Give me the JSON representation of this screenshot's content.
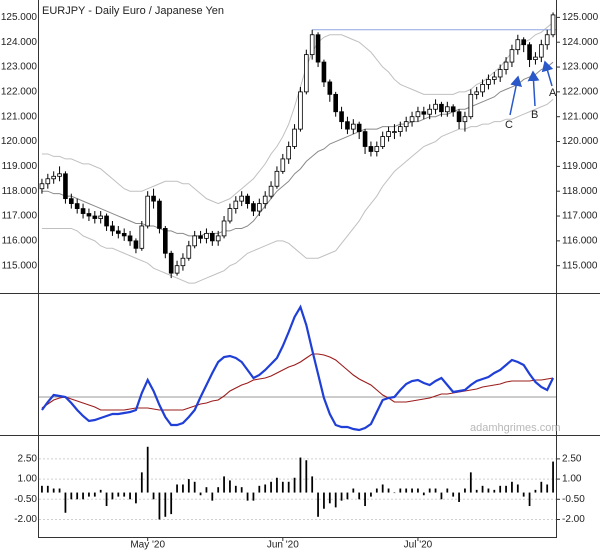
{
  "title": "EURJPY - Daily  Euro / Japanese Yen",
  "watermark": "adamhgrimes.com",
  "annotations": [
    {
      "text": "A"
    },
    {
      "text": "B"
    },
    {
      "text": "C"
    }
  ],
  "chart_data": [
    {
      "type": "candlestick",
      "categories": [
        null,
        null,
        null,
        null,
        null,
        null,
        null,
        null,
        null,
        null,
        null,
        null,
        null,
        null,
        null,
        null,
        null,
        null,
        "May '20",
        null,
        null,
        null,
        null,
        null,
        null,
        null,
        null,
        null,
        null,
        null,
        null,
        null,
        null,
        null,
        null,
        null,
        null,
        null,
        null,
        null,
        null,
        "Jun '20",
        null,
        null,
        null,
        null,
        null,
        null,
        null,
        null,
        null,
        null,
        null,
        null,
        null,
        null,
        null,
        null,
        null,
        null,
        null,
        null,
        null,
        null,
        "Jul '20",
        null,
        null,
        null,
        null,
        null,
        null,
        null,
        null,
        null,
        null,
        null,
        null,
        null,
        null,
        null,
        null,
        null,
        null,
        null,
        null,
        null,
        null,
        null
      ],
      "open": [
        118.1,
        118.3,
        118.5,
        118.6,
        118.7,
        117.7,
        117.5,
        117.3,
        117.1,
        117.0,
        116.9,
        117.0,
        116.6,
        116.4,
        116.3,
        116.2,
        116.0,
        115.7,
        116.6,
        117.8,
        117.6,
        116.5,
        115.5,
        114.7,
        115.0,
        115.3,
        115.8,
        116.2,
        116.1,
        116.3,
        116.0,
        116.2,
        116.8,
        117.3,
        117.6,
        117.8,
        117.5,
        117.2,
        117.5,
        117.8,
        118.2,
        118.8,
        119.3,
        119.8,
        120.5,
        122.0,
        123.5,
        124.3,
        123.2,
        122.4,
        121.9,
        121.2,
        120.8,
        120.5,
        120.7,
        120.4,
        119.8,
        119.6,
        119.8,
        120.2,
        120.4,
        120.4,
        120.6,
        120.8,
        121.0,
        121.2,
        121.1,
        121.3,
        121.5,
        121.2,
        121.4,
        121.2,
        120.8,
        121.0,
        121.9,
        122.0,
        122.3,
        122.5,
        122.6,
        122.9,
        123.2,
        123.7,
        124.1,
        123.9,
        123.3,
        123.4,
        123.9,
        124.3
      ],
      "high": [
        118.5,
        118.7,
        118.8,
        119.0,
        118.8,
        117.9,
        117.7,
        117.5,
        117.3,
        117.2,
        117.2,
        117.1,
        116.8,
        116.6,
        116.5,
        116.4,
        116.1,
        116.8,
        118.0,
        118.1,
        117.7,
        116.6,
        115.6,
        115.2,
        115.5,
        116.0,
        116.4,
        116.4,
        116.5,
        116.4,
        116.4,
        117.0,
        117.5,
        117.8,
        118.0,
        117.9,
        117.6,
        117.7,
        118.0,
        118.4,
        119.0,
        119.5,
        120.0,
        120.7,
        122.2,
        123.7,
        124.5,
        124.4,
        123.3,
        122.5,
        122.0,
        121.4,
        121.0,
        120.9,
        120.8,
        120.5,
        120.0,
        120.0,
        120.4,
        120.6,
        120.7,
        120.8,
        121.0,
        121.2,
        121.4,
        121.4,
        121.5,
        121.7,
        121.6,
        121.6,
        121.5,
        121.3,
        121.2,
        122.1,
        122.2,
        122.5,
        122.7,
        122.8,
        123.1,
        123.4,
        123.9,
        124.3,
        124.2,
        124.0,
        123.6,
        124.1,
        124.5,
        125.2
      ],
      "low": [
        117.9,
        118.1,
        118.3,
        118.4,
        117.5,
        117.3,
        117.1,
        116.9,
        116.8,
        116.7,
        116.7,
        116.4,
        116.2,
        116.1,
        116.0,
        115.8,
        115.5,
        115.6,
        116.5,
        117.3,
        116.3,
        115.3,
        114.5,
        114.6,
        114.8,
        115.2,
        115.7,
        115.9,
        115.9,
        115.8,
        115.8,
        116.1,
        116.7,
        117.1,
        117.4,
        117.3,
        117.0,
        117.0,
        117.3,
        117.7,
        118.1,
        118.7,
        119.1,
        119.7,
        120.4,
        121.9,
        123.3,
        123.0,
        122.2,
        121.6,
        121.0,
        120.5,
        120.3,
        120.3,
        120.1,
        119.5,
        119.4,
        119.4,
        119.7,
        120.0,
        120.1,
        120.2,
        120.4,
        120.6,
        120.8,
        120.9,
        120.9,
        121.1,
        121.0,
        121.0,
        121.0,
        120.5,
        120.4,
        120.9,
        121.7,
        121.8,
        122.1,
        122.3,
        122.4,
        122.7,
        123.0,
        123.5,
        123.6,
        123.0,
        123.1,
        123.2,
        123.7,
        124.2
      ],
      "close": [
        118.3,
        118.5,
        118.6,
        118.7,
        117.7,
        117.5,
        117.3,
        117.1,
        117.0,
        116.9,
        117.0,
        116.6,
        116.4,
        116.3,
        116.2,
        116.0,
        115.7,
        116.6,
        117.8,
        117.6,
        116.5,
        115.5,
        114.7,
        115.0,
        115.3,
        115.8,
        116.2,
        116.1,
        116.3,
        116.0,
        116.2,
        116.8,
        117.3,
        117.6,
        117.8,
        117.5,
        117.2,
        117.5,
        117.8,
        118.2,
        118.8,
        119.3,
        119.8,
        120.5,
        122.0,
        123.5,
        124.3,
        123.2,
        122.4,
        121.9,
        121.2,
        120.8,
        120.5,
        120.7,
        120.4,
        119.8,
        119.6,
        119.8,
        120.2,
        120.4,
        120.4,
        120.6,
        120.8,
        121.0,
        121.2,
        121.1,
        121.3,
        121.5,
        121.2,
        121.4,
        121.2,
        120.8,
        121.0,
        121.9,
        122.0,
        122.3,
        122.5,
        122.6,
        122.9,
        123.2,
        123.7,
        124.1,
        123.9,
        123.3,
        123.4,
        123.9,
        124.3,
        125.1
      ],
      "up_color": "#ffffff",
      "down_color": "#000000",
      "overlays": [
        {
          "color": "#c0c0c0",
          "values": [
            119.5,
            119.5,
            119.4,
            119.4,
            119.3,
            119.3,
            119.2,
            119.1,
            119.1,
            119.0,
            118.9,
            118.7,
            118.5,
            118.3,
            118.1,
            118.0,
            118.0,
            118.0,
            118.1,
            118.2,
            118.3,
            118.4,
            118.4,
            118.4,
            118.3,
            118.3,
            118.1,
            117.9,
            117.7,
            117.6,
            117.5,
            117.6,
            117.7,
            117.9,
            118.1,
            118.3,
            118.5,
            118.8,
            119.1,
            119.5,
            119.8,
            120.2,
            120.7,
            121.4,
            122.2,
            123.0,
            123.6,
            124.0,
            124.2,
            124.3,
            124.3,
            124.3,
            124.2,
            124.1,
            124.0,
            123.8,
            123.6,
            123.3,
            123.0,
            122.8,
            122.5,
            122.3,
            122.2,
            122.1,
            122.0,
            121.9,
            121.9,
            121.9,
            121.9,
            121.9,
            121.9,
            122.0,
            122.0,
            122.1,
            122.3,
            122.4,
            122.6,
            122.8,
            123.0,
            123.3,
            123.6,
            123.8,
            124.0,
            124.1,
            124.3,
            124.4,
            124.6,
            124.8
          ]
        },
        {
          "color": "#8a8a8a",
          "values": [
            118.0,
            118.0,
            117.9,
            117.9,
            117.8,
            117.8,
            117.7,
            117.6,
            117.5,
            117.4,
            117.3,
            117.2,
            117.1,
            117.0,
            116.9,
            116.8,
            116.7,
            116.7,
            116.6,
            116.6,
            116.5,
            116.4,
            116.4,
            116.3,
            116.3,
            116.2,
            116.2,
            116.2,
            116.3,
            116.3,
            116.3,
            116.4,
            116.4,
            116.5,
            116.5,
            116.6,
            116.8,
            117.1,
            117.4,
            117.7,
            118.0,
            118.2,
            118.4,
            118.7,
            118.9,
            119.2,
            119.4,
            119.6,
            119.7,
            119.9,
            120.0,
            120.1,
            120.2,
            120.3,
            120.4,
            120.5,
            120.5,
            120.5,
            120.6,
            120.6,
            120.6,
            120.7,
            120.7,
            120.8,
            120.8,
            120.9,
            121.0,
            121.0,
            121.1,
            121.1,
            121.2,
            121.3,
            121.3,
            121.4,
            121.5,
            121.6,
            121.7,
            121.8,
            122.0,
            122.1,
            122.2,
            122.3,
            122.5,
            122.6,
            122.7,
            122.9,
            123.0,
            123.2
          ]
        },
        {
          "color": "#c0c0c0",
          "values": [
            116.5,
            116.5,
            116.5,
            116.5,
            116.5,
            116.5,
            116.4,
            116.2,
            116.1,
            116.0,
            115.8,
            115.7,
            115.7,
            115.6,
            115.5,
            115.4,
            115.3,
            115.2,
            115.1,
            114.9,
            114.8,
            114.7,
            114.6,
            114.5,
            114.4,
            114.3,
            114.3,
            114.4,
            114.5,
            114.6,
            114.7,
            114.8,
            115.0,
            115.1,
            115.3,
            115.5,
            115.6,
            115.7,
            115.8,
            115.9,
            116.0,
            116.0,
            115.9,
            115.7,
            115.5,
            115.3,
            115.3,
            115.3,
            115.4,
            115.5,
            115.6,
            115.9,
            116.2,
            116.5,
            116.8,
            117.2,
            117.5,
            117.8,
            118.2,
            118.5,
            118.8,
            119.0,
            119.2,
            119.4,
            119.6,
            119.8,
            119.9,
            120.0,
            120.2,
            120.3,
            120.4,
            120.5,
            120.5,
            120.6,
            120.6,
            120.7,
            120.7,
            120.8,
            120.8,
            120.9,
            120.9,
            121.0,
            121.1,
            121.2,
            121.3,
            121.4,
            121.5,
            121.7
          ]
        }
      ],
      "resistance": {
        "value": 124.5,
        "color": "#8fa6e0"
      },
      "ylim": [
        113.9,
        125.7
      ],
      "yticks": [
        {
          "value": 125,
          "label": "125.000"
        },
        {
          "value": 124,
          "label": "124.000"
        },
        {
          "value": 123,
          "label": "123.000"
        },
        {
          "value": 122,
          "label": "122.000"
        },
        {
          "value": 121,
          "label": "121.000"
        },
        {
          "value": 120,
          "label": "120.000"
        },
        {
          "value": 119,
          "label": "119.000"
        },
        {
          "value": 118,
          "label": "118.000"
        },
        {
          "value": 117,
          "label": "117.000"
        },
        {
          "value": 116,
          "label": "116.000"
        },
        {
          "value": 115,
          "label": "115.000"
        }
      ]
    },
    {
      "type": "line",
      "series": [
        {
          "color": "#1f3fd6",
          "values": [
            -1.3,
            -0.5,
            0.2,
            0.1,
            0.0,
            -0.6,
            -1.3,
            -1.9,
            -2.4,
            -2.3,
            -2.1,
            -1.9,
            -1.7,
            -1.7,
            -1.6,
            -1.5,
            -1.3,
            0.4,
            1.7,
            0.6,
            -0.8,
            -2.0,
            -2.8,
            -2.8,
            -2.6,
            -2.0,
            -1.3,
            0.0,
            1.2,
            2.4,
            3.5,
            4.0,
            4.1,
            3.9,
            3.5,
            2.7,
            1.9,
            2.2,
            2.7,
            3.3,
            3.9,
            5.1,
            6.5,
            8.0,
            9.0,
            7.2,
            4.7,
            2.3,
            -0.1,
            -1.7,
            -2.8,
            -3.0,
            -3.0,
            -3.2,
            -3.3,
            -3.1,
            -2.7,
            -1.5,
            -0.3,
            -0.1,
            0.0,
            0.7,
            1.3,
            1.6,
            1.7,
            1.4,
            1.2,
            1.6,
            1.9,
            1.2,
            0.5,
            0.6,
            0.7,
            1.2,
            1.6,
            1.8,
            2.0,
            2.4,
            2.7,
            3.2,
            3.7,
            3.5,
            3.2,
            2.3,
            1.5,
            1.0,
            0.7,
            1.9
          ]
        },
        {
          "color": "#9b1c1c",
          "values": [
            -1.1,
            -0.7,
            -0.3,
            -0.1,
            0.0,
            -0.2,
            -0.4,
            -0.6,
            -0.8,
            -1.0,
            -1.3,
            -1.3,
            -1.3,
            -1.3,
            -1.3,
            -1.2,
            -1.1,
            -1.1,
            -1.1,
            -1.2,
            -1.3,
            -1.3,
            -1.3,
            -1.3,
            -1.3,
            -1.1,
            -0.9,
            -0.7,
            -0.6,
            -0.4,
            -0.3,
            0.1,
            0.6,
            0.9,
            1.2,
            1.4,
            1.7,
            1.8,
            1.9,
            2.1,
            2.4,
            2.7,
            3.0,
            3.2,
            3.5,
            3.9,
            4.3,
            4.3,
            4.2,
            4.0,
            3.7,
            3.2,
            2.7,
            2.2,
            1.8,
            1.5,
            1.2,
            0.7,
            0.2,
            -0.1,
            -0.5,
            -0.5,
            -0.5,
            -0.4,
            -0.3,
            -0.2,
            -0.1,
            0.1,
            0.3,
            0.3,
            0.4,
            0.5,
            0.6,
            0.7,
            0.8,
            1.0,
            1.1,
            1.2,
            1.3,
            1.5,
            1.6,
            1.6,
            1.6,
            1.6,
            1.7,
            1.7,
            1.8,
            1.9
          ]
        }
      ],
      "reference_line": 0,
      "ylim": [
        -3.8,
        10.3
      ]
    },
    {
      "type": "bar",
      "values": [
        0.5,
        0.5,
        0.3,
        0.3,
        -1.5,
        -0.5,
        -0.5,
        -0.5,
        -0.3,
        -0.3,
        0.2,
        -1.0,
        -0.5,
        -0.3,
        -0.3,
        -0.5,
        -0.8,
        1.5,
        3.4,
        -0.5,
        -2.0,
        -1.8,
        -1.6,
        0.6,
        0.6,
        1.0,
        0.8,
        -0.2,
        0.4,
        -0.6,
        0.4,
        1.2,
        0.9,
        0.5,
        0.4,
        -0.6,
        -0.6,
        0.5,
        0.6,
        0.8,
        1.1,
        0.8,
        0.8,
        1.1,
        2.6,
        2.4,
        1.2,
        -1.8,
        -1.2,
        -0.8,
        -1.1,
        -0.6,
        -0.5,
        0.3,
        -0.5,
        -1.0,
        -0.3,
        0.3,
        0.6,
        0.3,
        0.0,
        0.3,
        0.3,
        0.3,
        0.3,
        -0.2,
        0.3,
        0.3,
        -0.5,
        0.3,
        -0.3,
        -0.7,
        0.3,
        1.5,
        0.2,
        0.5,
        0.3,
        0.2,
        0.5,
        0.5,
        0.8,
        0.6,
        -0.3,
        -1.0,
        0.2,
        0.8,
        0.6,
        2.3
      ],
      "color": "#000000",
      "grid": true,
      "ylim": [
        -3.3,
        4.2
      ],
      "yticks": [
        {
          "value": 2.5,
          "label": "2.50"
        },
        {
          "value": 1,
          "label": "1.00"
        },
        {
          "value": -0.5,
          "label": "-0.50"
        },
        {
          "value": -2,
          "label": "-2.00"
        }
      ]
    }
  ]
}
